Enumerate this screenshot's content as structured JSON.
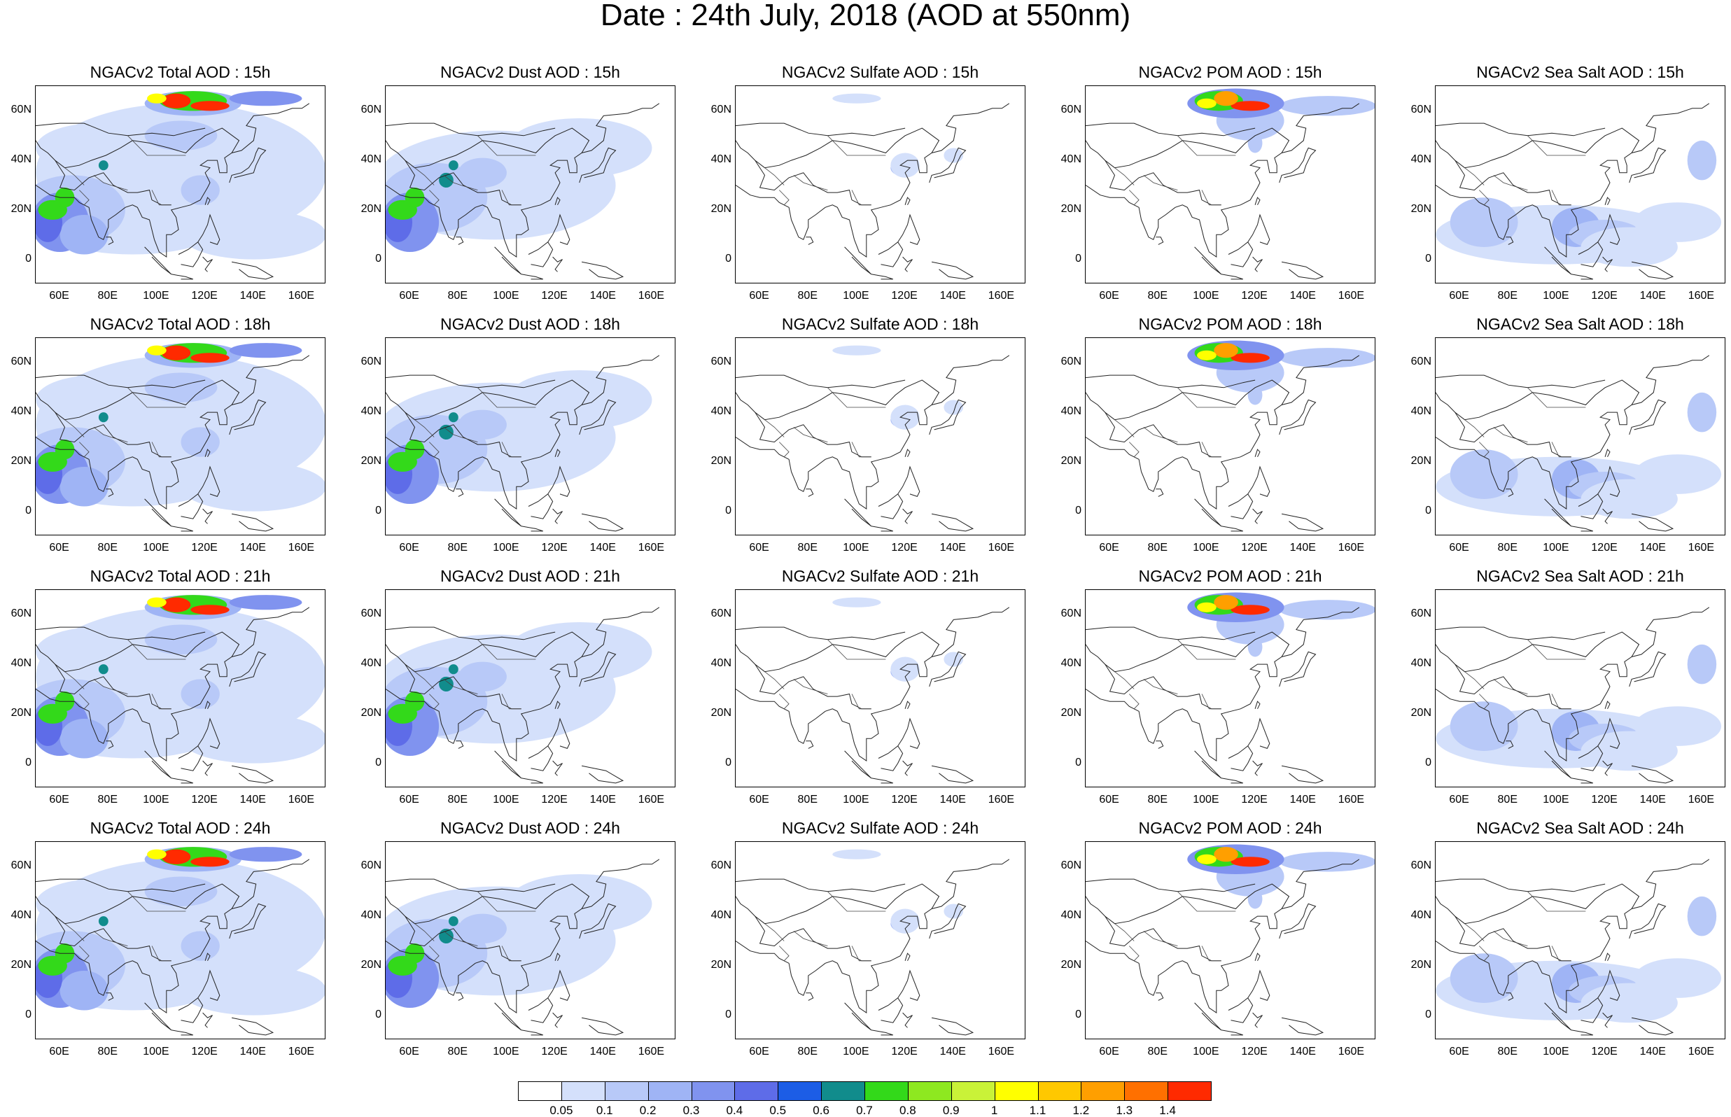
{
  "title": "Date : 24th July, 2018 (AOD at 550nm)",
  "axes": {
    "y_ticks": [
      "60N",
      "40N",
      "20N",
      "0"
    ],
    "x_ticks": [
      "60E",
      "80E",
      "100E",
      "120E",
      "140E",
      "160E"
    ],
    "lon_range": [
      50,
      170
    ],
    "lat_range": [
      -10,
      70
    ]
  },
  "panels": [
    {
      "title": "NGACv2 Total AOD : 15h",
      "type": "total",
      "hour": "15h"
    },
    {
      "title": "NGACv2 Dust AOD : 15h",
      "type": "dust",
      "hour": "15h"
    },
    {
      "title": "NGACv2 Sulfate AOD : 15h",
      "type": "sulfate",
      "hour": "15h"
    },
    {
      "title": "NGACv2 POM AOD : 15h",
      "type": "pom",
      "hour": "15h"
    },
    {
      "title": "NGACv2 Sea Salt AOD : 15h",
      "type": "seasalt",
      "hour": "15h"
    },
    {
      "title": "NGACv2 Total AOD : 18h",
      "type": "total",
      "hour": "18h"
    },
    {
      "title": "NGACv2 Dust AOD : 18h",
      "type": "dust",
      "hour": "18h"
    },
    {
      "title": "NGACv2 Sulfate AOD : 18h",
      "type": "sulfate",
      "hour": "18h"
    },
    {
      "title": "NGACv2 POM AOD : 18h",
      "type": "pom",
      "hour": "18h"
    },
    {
      "title": "NGACv2 Sea Salt AOD : 18h",
      "type": "seasalt",
      "hour": "18h"
    },
    {
      "title": "NGACv2 Total AOD : 21h",
      "type": "total",
      "hour": "21h"
    },
    {
      "title": "NGACv2 Dust AOD : 21h",
      "type": "dust",
      "hour": "21h"
    },
    {
      "title": "NGACv2 Sulfate AOD : 21h",
      "type": "sulfate",
      "hour": "21h"
    },
    {
      "title": "NGACv2 POM AOD : 21h",
      "type": "pom",
      "hour": "21h"
    },
    {
      "title": "NGACv2 Sea Salt AOD : 21h",
      "type": "seasalt",
      "hour": "21h"
    },
    {
      "title": "NGACv2 Total AOD : 24h",
      "type": "total",
      "hour": "24h"
    },
    {
      "title": "NGACv2 Dust AOD : 24h",
      "type": "dust",
      "hour": "24h"
    },
    {
      "title": "NGACv2 Sulfate AOD : 24h",
      "type": "sulfate",
      "hour": "24h"
    },
    {
      "title": "NGACv2 POM AOD : 24h",
      "type": "pom",
      "hour": "24h"
    },
    {
      "title": "NGACv2 Sea Salt  AOD : 24h",
      "type": "seasalt",
      "hour": "24h"
    }
  ],
  "colorbar": {
    "labels": [
      "0.05",
      "0.1",
      "0.2",
      "0.3",
      "0.4",
      "0.5",
      "0.6",
      "0.7",
      "0.8",
      "0.9",
      "1",
      "1.1",
      "1.2",
      "1.3",
      "1.4"
    ],
    "colors": [
      "#ffffff",
      "#d4e0fb",
      "#b8c9f8",
      "#9fb4f5",
      "#8093ef",
      "#5e6ce8",
      "#1c5de6",
      "#118c8c",
      "#33d91a",
      "#8ee820",
      "#c9f238",
      "#ffff00",
      "#ffc800",
      "#ff9f00",
      "#ff7000",
      "#ff2a00"
    ]
  }
}
